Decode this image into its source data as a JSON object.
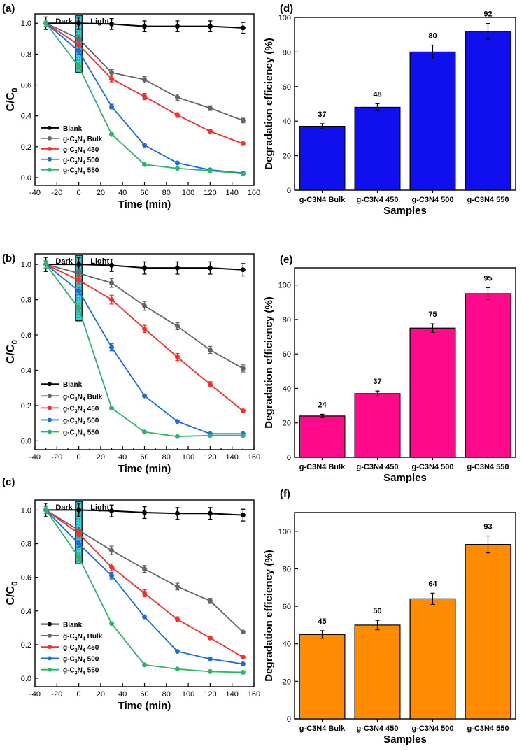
{
  "chart_data": [
    {
      "panel": "(a)",
      "type": "line",
      "xlabel": "Time (min)",
      "ylabel": "C/C0",
      "xlim": [
        -40,
        160
      ],
      "ylim": [
        -0.05,
        1.06
      ],
      "xticks": [
        -40,
        -20,
        0,
        20,
        40,
        60,
        80,
        100,
        120,
        140,
        160
      ],
      "yticks": [
        0.0,
        0.2,
        0.4,
        0.6,
        0.8,
        1.0
      ],
      "annotations": [
        "Dark",
        "Light"
      ],
      "legend_position": "lower-left",
      "x": [
        -30,
        0,
        30,
        60,
        90,
        120,
        150
      ],
      "series": [
        {
          "name": "Blank",
          "color": "#000000",
          "values": [
            1.0,
            1.0,
            0.995,
            0.98,
            0.98,
            0.98,
            0.97
          ],
          "err": [
            0.04,
            0.04,
            0.035,
            0.035,
            0.035,
            0.035,
            0.035
          ]
        },
        {
          "name": "g-C3N4 Bulk",
          "color": "#666666",
          "values": [
            1.0,
            0.9,
            0.68,
            0.635,
            0.52,
            0.45,
            0.37
          ],
          "err": [
            0.02,
            0.02,
            0.02,
            0.02,
            0.02,
            0.015,
            0.015
          ]
        },
        {
          "name": "g-C3N4 450",
          "color": "#ff2a2a",
          "values": [
            1.0,
            0.86,
            0.64,
            0.525,
            0.405,
            0.3,
            0.22
          ],
          "err": [
            0.02,
            0.02,
            0.02,
            0.02,
            0.015,
            0.01,
            0.01
          ]
        },
        {
          "name": "g-C3N4 500",
          "color": "#1a6be6",
          "values": [
            1.0,
            0.82,
            0.46,
            0.21,
            0.095,
            0.05,
            0.03
          ],
          "err": [
            0.02,
            0.02,
            0.015,
            0.01,
            0.01,
            0.01,
            0.01
          ]
        },
        {
          "name": "g-C3N4 550",
          "color": "#2fb56a",
          "values": [
            1.0,
            0.72,
            0.28,
            0.085,
            0.06,
            0.045,
            0.025
          ],
          "err": [
            0.02,
            0.02,
            0.01,
            0.01,
            0.01,
            0.01,
            0.01
          ]
        }
      ]
    },
    {
      "panel": "(d)",
      "type": "bar",
      "xlabel": "Samples",
      "ylabel": "Degradation efficiency (%)",
      "ylim": [
        0,
        100
      ],
      "yticks": [
        0,
        20,
        40,
        60,
        80,
        100
      ],
      "color": "#1010ee",
      "categories": [
        "g-C3N4 Bulk",
        "g-C3N4 450",
        "g-C3N4 500",
        "g-C3N4 550"
      ],
      "values": [
        37,
        48,
        80,
        92
      ],
      "err": [
        1.5,
        2,
        4,
        4.5
      ]
    },
    {
      "panel": "(b)",
      "type": "line",
      "xlabel": "Time (min)",
      "ylabel": "C/C0",
      "xlim": [
        -40,
        160
      ],
      "ylim": [
        -0.05,
        1.06
      ],
      "xticks": [
        -40,
        -30,
        -20,
        -10,
        0,
        10,
        20,
        30,
        40,
        50,
        60,
        70,
        80,
        90,
        100,
        110,
        120,
        130,
        140,
        150,
        160
      ],
      "yticks": [
        0.0,
        0.2,
        0.4,
        0.6,
        0.8,
        1.0
      ],
      "annotations": [
        "Dark",
        "Light"
      ],
      "legend_position": "lower-left",
      "x": [
        -30,
        0,
        30,
        60,
        90,
        120,
        150
      ],
      "series": [
        {
          "name": "Blank",
          "color": "#000000",
          "values": [
            1.0,
            1.0,
            0.995,
            0.98,
            0.98,
            0.98,
            0.97
          ],
          "err": [
            0.04,
            0.04,
            0.035,
            0.035,
            0.035,
            0.035,
            0.035
          ]
        },
        {
          "name": "g-C3N4 Bulk",
          "color": "#666666",
          "values": [
            1.0,
            0.95,
            0.895,
            0.765,
            0.65,
            0.515,
            0.41
          ],
          "err": [
            0.02,
            0.02,
            0.025,
            0.025,
            0.02,
            0.02,
            0.02
          ]
        },
        {
          "name": "g-C3N4 450",
          "color": "#ff2a2a",
          "values": [
            1.0,
            0.91,
            0.8,
            0.635,
            0.475,
            0.32,
            0.17
          ],
          "err": [
            0.02,
            0.02,
            0.025,
            0.02,
            0.02,
            0.015,
            0.01
          ]
        },
        {
          "name": "g-C3N4 500",
          "color": "#1a6be6",
          "values": [
            1.0,
            0.85,
            0.53,
            0.255,
            0.11,
            0.04,
            0.04
          ],
          "err": [
            0.02,
            0.02,
            0.02,
            0.01,
            0.01,
            0.01,
            0.01
          ]
        },
        {
          "name": "g-C3N4 550",
          "color": "#2fb56a",
          "values": [
            1.0,
            0.75,
            0.185,
            0.05,
            0.025,
            0.03,
            0.03
          ],
          "err": [
            0.02,
            0.02,
            0.01,
            0.01,
            0.01,
            0.01,
            0.01
          ]
        }
      ]
    },
    {
      "panel": "(e)",
      "type": "bar",
      "xlabel": "Samples",
      "ylabel": "Degradation efficiency (%)",
      "ylim": [
        0,
        110
      ],
      "yticks": [
        0,
        20,
        40,
        60,
        80,
        100
      ],
      "color": "#ff0a8a",
      "categories": [
        "g-C3N4 Bulk",
        "g-C3N4 450",
        "g-C3N4 500",
        "g-C3N4 550"
      ],
      "values": [
        24,
        37,
        75,
        95
      ],
      "err": [
        1,
        1.5,
        2.5,
        3.5
      ]
    },
    {
      "panel": "(c)",
      "type": "line",
      "xlabel": "Time (min)",
      "ylabel": "C/C0",
      "xlim": [
        -40,
        160
      ],
      "ylim": [
        -0.05,
        1.06
      ],
      "xticks": [
        -40,
        -20,
        0,
        20,
        40,
        60,
        80,
        100,
        120,
        140,
        160
      ],
      "yticks": [
        0.0,
        0.2,
        0.4,
        0.6,
        0.8,
        1.0
      ],
      "annotations": [
        "Dark",
        "Light"
      ],
      "legend_position": "lower-left",
      "x": [
        -30,
        0,
        30,
        60,
        90,
        120,
        150
      ],
      "series": [
        {
          "name": "Blank",
          "color": "#000000",
          "values": [
            1.0,
            1.0,
            0.995,
            0.985,
            0.98,
            0.98,
            0.97
          ],
          "err": [
            0.04,
            0.04,
            0.035,
            0.035,
            0.035,
            0.035,
            0.035
          ]
        },
        {
          "name": "g-C3N4 Bulk",
          "color": "#666666",
          "values": [
            1.0,
            0.88,
            0.76,
            0.65,
            0.545,
            0.46,
            0.275
          ],
          "err": [
            0.02,
            0.02,
            0.025,
            0.02,
            0.02,
            0.015,
            0.01
          ]
        },
        {
          "name": "g-C3N4 450",
          "color": "#ff2a2a",
          "values": [
            1.0,
            0.86,
            0.66,
            0.505,
            0.35,
            0.24,
            0.125
          ],
          "err": [
            0.02,
            0.02,
            0.02,
            0.02,
            0.015,
            0.01,
            0.01
          ]
        },
        {
          "name": "g-C3N4 500",
          "color": "#1a6be6",
          "values": [
            1.0,
            0.8,
            0.61,
            0.365,
            0.16,
            0.115,
            0.085
          ],
          "err": [
            0.02,
            0.02,
            0.02,
            0.01,
            0.01,
            0.01,
            0.01
          ]
        },
        {
          "name": "g-C3N4 550",
          "color": "#2fb56a",
          "values": [
            1.0,
            0.72,
            0.325,
            0.08,
            0.055,
            0.04,
            0.035
          ],
          "err": [
            0.02,
            0.02,
            0.01,
            0.01,
            0.01,
            0.01,
            0.01
          ]
        }
      ]
    },
    {
      "panel": "(f)",
      "type": "bar",
      "xlabel": "Samples",
      "ylabel": "Degradation efficiency (%)",
      "ylim": [
        0,
        110
      ],
      "yticks": [
        0,
        20,
        40,
        60,
        80,
        100
      ],
      "color": "#ff8c00",
      "categories": [
        "g-C3N4 Bulk",
        "g-C3N4 450",
        "g-C3N4 500",
        "g-C3N4 550"
      ],
      "values": [
        45,
        50,
        64,
        93
      ],
      "err": [
        2,
        2.5,
        3,
        4.5
      ]
    }
  ]
}
